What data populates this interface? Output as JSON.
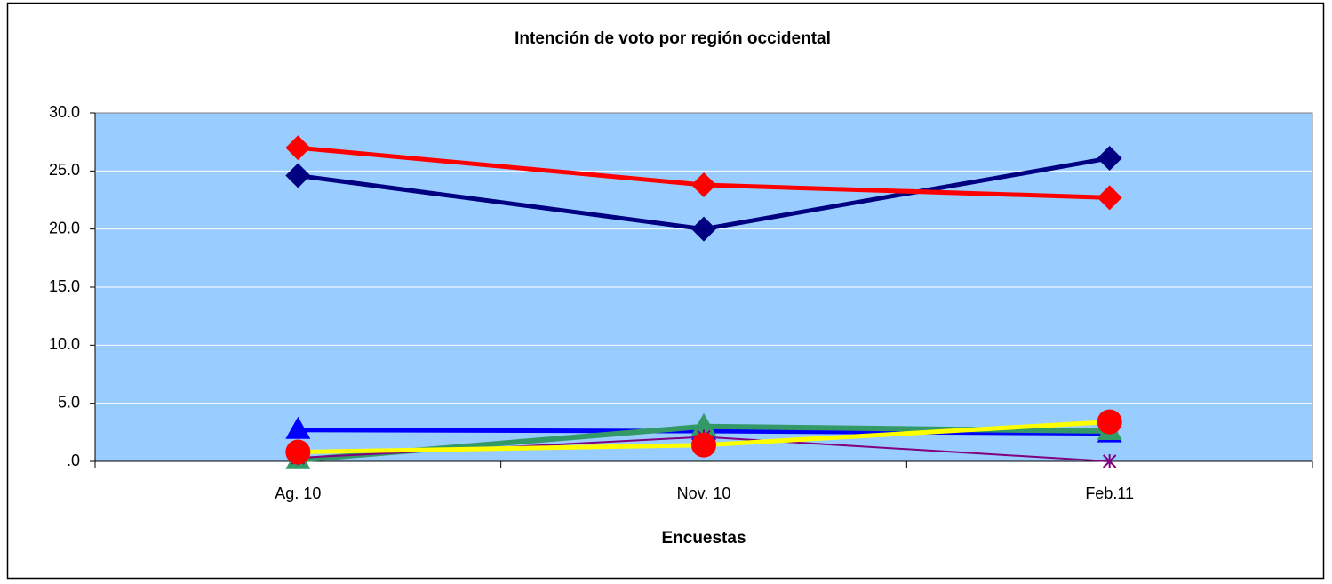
{
  "chart_data": {
    "type": "line",
    "title": "Intención de voto por región occidental",
    "x_label": "Encuestas",
    "categories": [
      "Ag. 10",
      "Nov. 10",
      "Feb.11"
    ],
    "ylim": [
      0,
      30
    ],
    "yticks": [
      {
        "value": 0,
        "label": ".0"
      },
      {
        "value": 5,
        "label": "5.0"
      },
      {
        "value": 10,
        "label": "10.0"
      },
      {
        "value": 15,
        "label": "15.0"
      },
      {
        "value": 20,
        "label": "20.0"
      },
      {
        "value": 25,
        "label": "25.0"
      },
      {
        "value": 30,
        "label": "30.0"
      }
    ],
    "grid": true,
    "background": "#99ccff",
    "series": [
      {
        "color": "#000080",
        "marker": "diamond",
        "marker_color": "#000080",
        "line_width": 5,
        "values": [
          24.6,
          20.0,
          26.1
        ]
      },
      {
        "color": "#ff0000",
        "marker": "diamond",
        "marker_color": "#ff0000",
        "line_width": 5,
        "values": [
          27.0,
          23.8,
          22.7
        ]
      },
      {
        "color": "#0000ff",
        "marker": "triangle",
        "marker_color": "#0000ff",
        "line_width": 5,
        "values": [
          2.7,
          2.6,
          2.4
        ]
      },
      {
        "color": "#339966",
        "marker": "triangle",
        "marker_color": "#339966",
        "line_width": 6,
        "values": [
          0.1,
          3.0,
          2.6
        ]
      },
      {
        "color": "#800080",
        "marker": "star",
        "marker_color": "#800080",
        "line_width": 2,
        "values": [
          0.3,
          2.1,
          0.0
        ]
      },
      {
        "color": "#ffff00",
        "marker": "circle",
        "marker_color": "#ff0000",
        "line_width": 5,
        "values": [
          0.8,
          1.4,
          3.4
        ]
      }
    ]
  }
}
